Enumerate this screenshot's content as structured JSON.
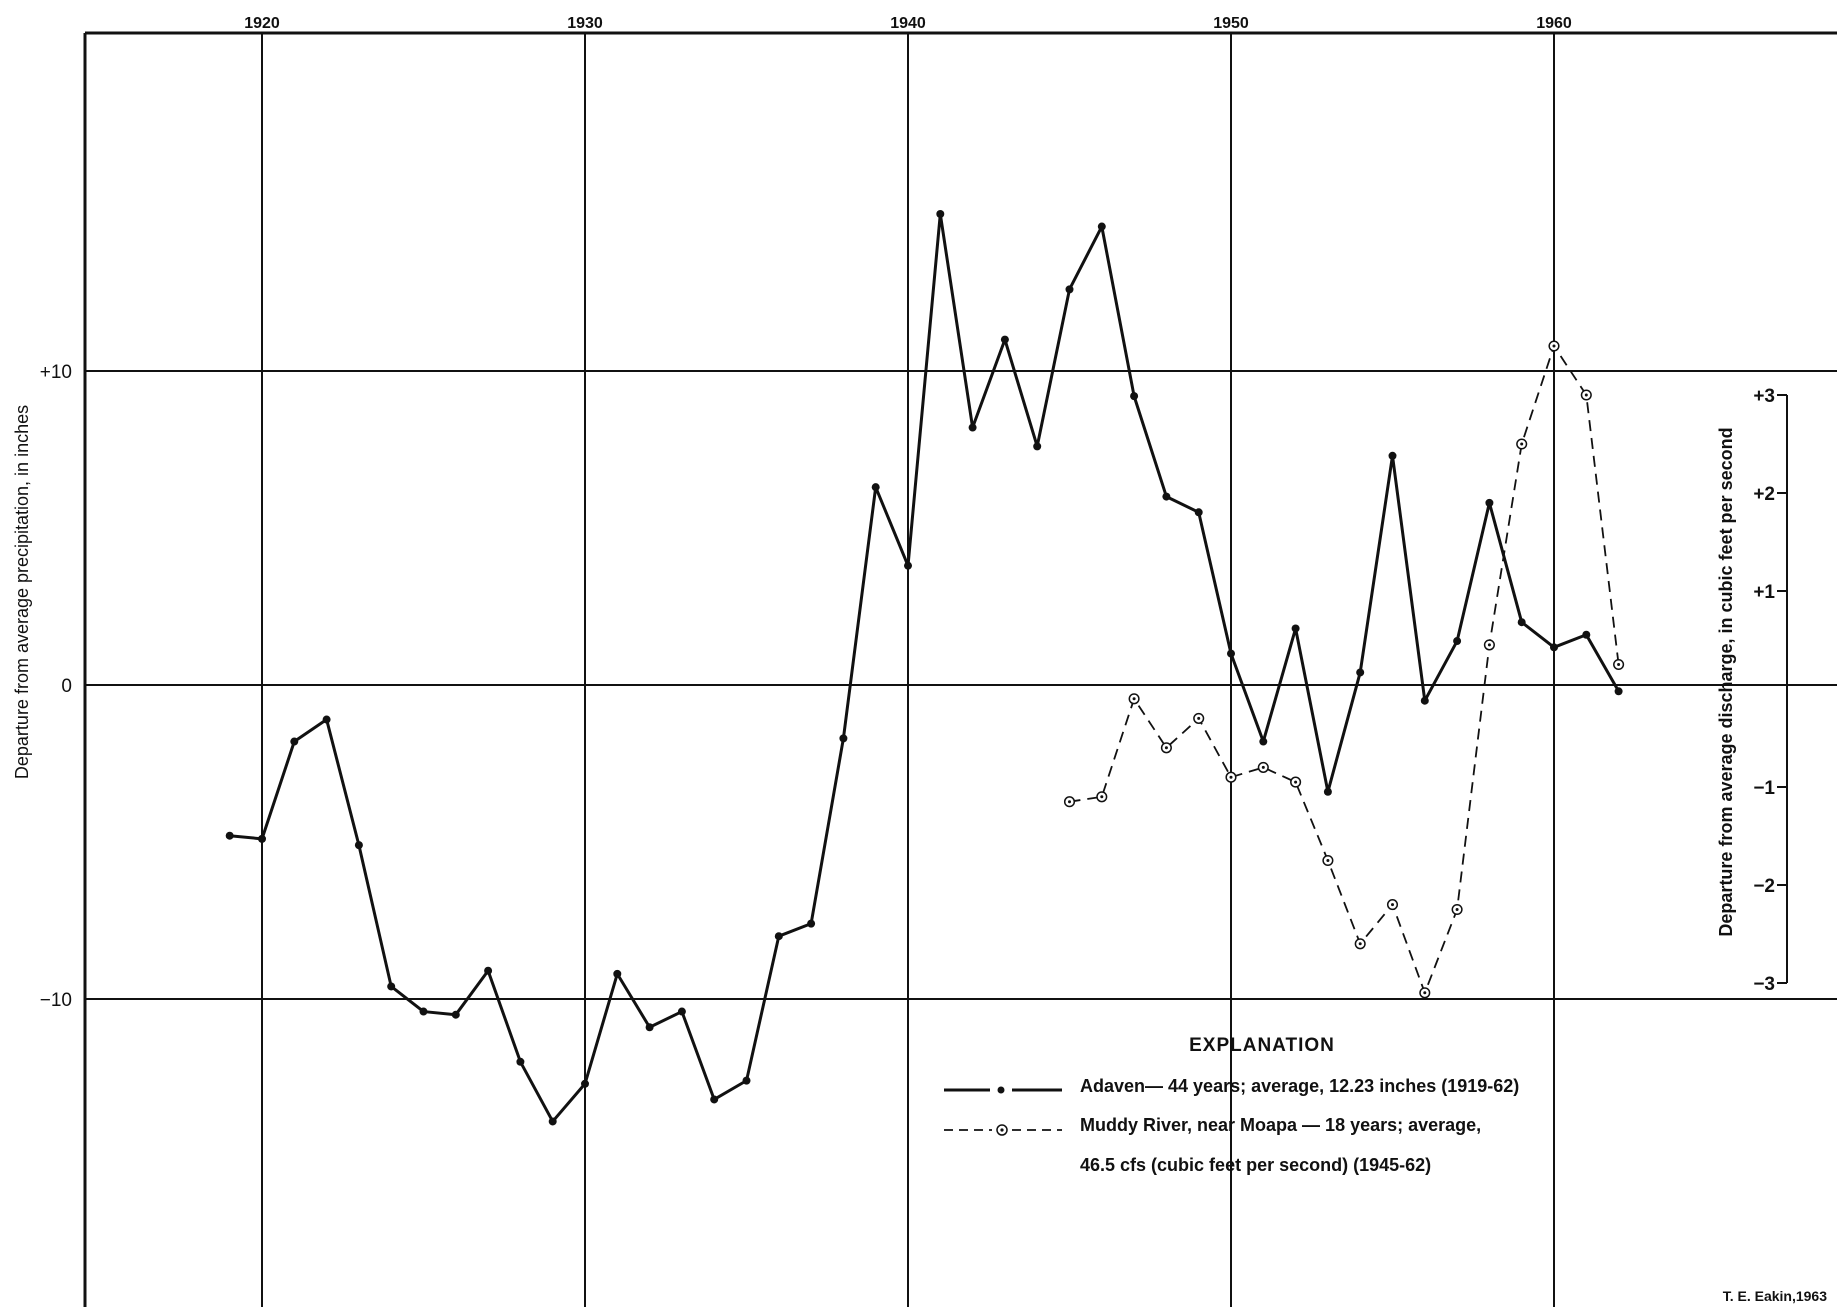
{
  "chart_data": {
    "type": "line",
    "x_ticks": [
      "1920",
      "1930",
      "1940",
      "1950",
      "1960"
    ],
    "x_tick_values": [
      1920,
      1930,
      1940,
      1950,
      1960
    ],
    "xlim": [
      1914.4,
      1969
    ],
    "y_left": {
      "label": "Departure from average precipitation, in inches",
      "ticks": [
        "+10",
        "0",
        "−10"
      ],
      "tick_values": [
        10,
        0,
        -10
      ],
      "ylim": [
        -20,
        20.7
      ]
    },
    "y_right": {
      "label": "Departure from average discharge, in cubic feet per second",
      "ticks": [
        "+3",
        "+2",
        "+1",
        "−1",
        "−2",
        "−3"
      ],
      "tick_values": [
        3,
        2,
        1,
        -1,
        -2,
        -3
      ],
      "ylim": [
        -3.2,
        3.2
      ]
    },
    "series": [
      {
        "name": "Adaven",
        "axis": "left",
        "style": "solid",
        "marker": "dot",
        "x": [
          1919,
          1920,
          1921,
          1922,
          1923,
          1924,
          1925,
          1926,
          1927,
          1928,
          1929,
          1930,
          1931,
          1932,
          1933,
          1934,
          1935,
          1936,
          1937,
          1938,
          1939,
          1940,
          1941,
          1942,
          1943,
          1944,
          1945,
          1946,
          1947,
          1948,
          1949,
          1950,
          1951,
          1952,
          1953,
          1954,
          1955,
          1956,
          1957,
          1958,
          1959,
          1960,
          1961,
          1962
        ],
        "y": [
          -4.8,
          -4.9,
          -1.8,
          -1.1,
          -5.1,
          -9.6,
          -10.4,
          -10.5,
          -9.1,
          -12.0,
          -13.9,
          -12.7,
          -9.2,
          -10.9,
          -10.4,
          -13.2,
          -12.6,
          -8.0,
          -7.6,
          -1.7,
          6.3,
          3.8,
          15.0,
          8.2,
          11.0,
          7.6,
          12.6,
          14.6,
          9.2,
          6.0,
          5.5,
          1.0,
          -1.8,
          1.8,
          -3.4,
          0.4,
          7.3,
          -0.5,
          1.4,
          5.8,
          2.0,
          1.2,
          1.6,
          -0.2
        ]
      },
      {
        "name": "Muddy River, near Moapa",
        "axis": "right",
        "style": "dashed",
        "marker": "ring",
        "x": [
          1945,
          1946,
          1947,
          1948,
          1949,
          1950,
          1951,
          1952,
          1953,
          1954,
          1955,
          1956,
          1957,
          1958,
          1959,
          1960,
          1961,
          1962
        ],
        "y": [
          -1.15,
          -1.1,
          -0.1,
          -0.6,
          -0.3,
          -0.9,
          -0.8,
          -0.95,
          -1.75,
          -2.6,
          -2.2,
          -3.1,
          -2.25,
          0.45,
          2.5,
          3.5,
          3.0,
          0.25
        ]
      }
    ],
    "legend": {
      "title": "EXPLANATION",
      "entries": [
        "Adaven— 44 years; average, 12.23 inches (1919-62)",
        "Muddy River, near Moapa — 18 years; average,",
        "46.5 cfs (cubic feet per second) (1945-62)"
      ]
    },
    "credit": "T. E. Eakin,1963",
    "grid": true,
    "colors": {
      "ink": "#111111",
      "background": "#ffffff"
    }
  }
}
